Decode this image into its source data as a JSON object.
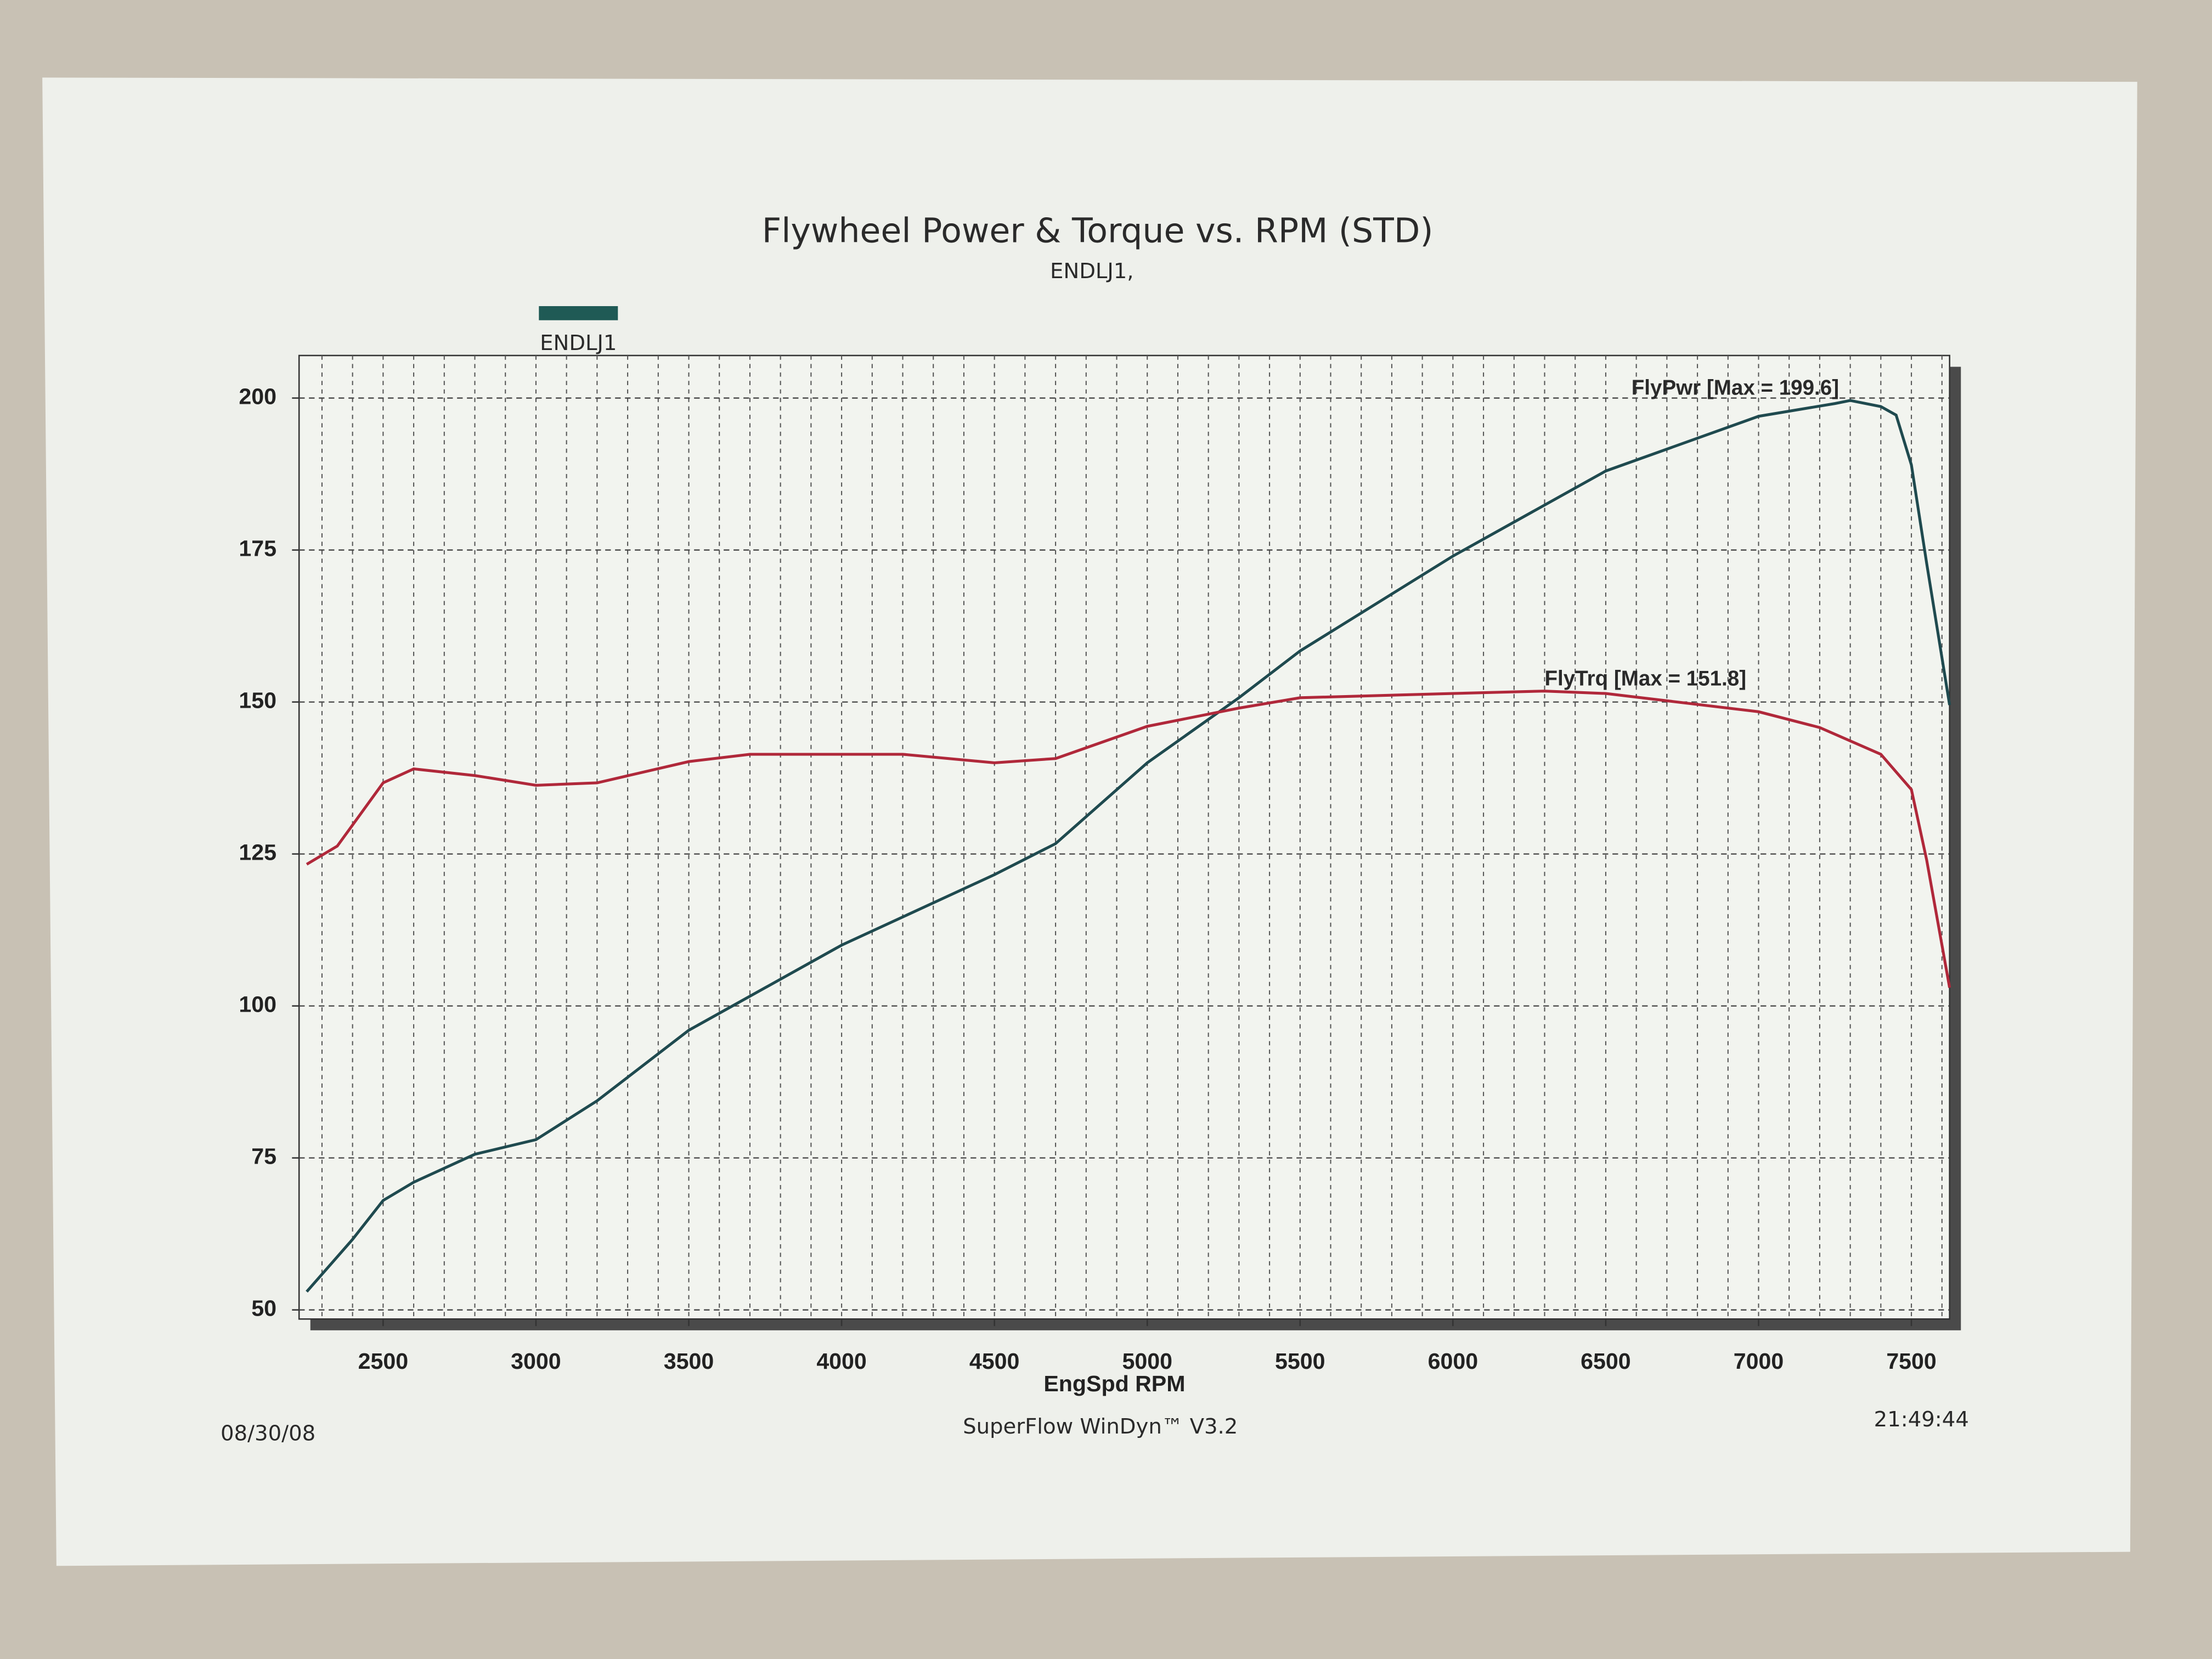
{
  "chart_data": {
    "type": "line",
    "title": "Flywheel Power & Torque vs. RPM (STD)",
    "subtitle": "ENDLJ1,",
    "legend": {
      "label": "ENDLJ1",
      "color": "#1f5a55"
    },
    "xlabel": "EngSpd RPM",
    "footer_left": "08/30/08",
    "footer_center": "SuperFlow WinDyn™ V3.2",
    "footer_right": "21:49:44",
    "xlim": [
      2225,
      7625
    ],
    "ylim": [
      48.5,
      207
    ],
    "xticks": [
      2500,
      3000,
      3500,
      4000,
      4500,
      5000,
      5500,
      6000,
      6500,
      7000,
      7500
    ],
    "yticks": [
      50,
      75,
      100,
      125,
      150,
      175,
      200
    ],
    "x_minor_ticks": [
      2300,
      2400,
      2500,
      2600,
      2700,
      2800,
      2900,
      3000,
      3100,
      3200,
      3300,
      3400,
      3500,
      3600,
      3700,
      3800,
      3900,
      4000,
      4100,
      4200,
      4300,
      4400,
      4500,
      4600,
      4700,
      4800,
      4900,
      5000,
      5100,
      5200,
      5300,
      5400,
      5500,
      5600,
      5700,
      5800,
      5900,
      6000,
      6100,
      6200,
      6300,
      6400,
      6500,
      6600,
      6700,
      6800,
      6900,
      7000,
      7100,
      7200,
      7300,
      7400,
      7500,
      7600
    ],
    "grid": true,
    "series": [
      {
        "annotation": "FlyPwr [Max = 199.6]",
        "color": "#1f4a4f",
        "x": [
          2250,
          2400,
          2500,
          2600,
          2800,
          3000,
          3200,
          3500,
          4000,
          4500,
          4700,
          5000,
          5300,
          5500,
          6000,
          6500,
          7000,
          7250,
          7300,
          7400,
          7450,
          7500,
          7550,
          7625
        ],
        "values": [
          53,
          61.6,
          68,
          71,
          75.6,
          78,
          84.4,
          96,
          110,
          121.6,
          126.7,
          140,
          150.7,
          158.4,
          174,
          188,
          197,
          199.1,
          199.6,
          198.6,
          197.2,
          189,
          172.8,
          149.5
        ]
      },
      {
        "annotation": "FlyTrq [Max = 151.8]",
        "color": "#b0283a",
        "x": [
          2250,
          2350,
          2500,
          2600,
          2800,
          3000,
          3200,
          3500,
          3700,
          4000,
          4200,
          4500,
          4700,
          5000,
          5300,
          5500,
          6000,
          6300,
          6500,
          7000,
          7200,
          7400,
          7500,
          7550,
          7625
        ],
        "values": [
          123.3,
          126.3,
          136.7,
          139,
          137.9,
          136.3,
          136.7,
          140.2,
          141.4,
          141.4,
          141.4,
          140,
          140.7,
          146,
          149,
          150.7,
          151.4,
          151.8,
          151.4,
          148.4,
          145.8,
          141.4,
          135.6,
          124,
          103
        ]
      }
    ]
  }
}
